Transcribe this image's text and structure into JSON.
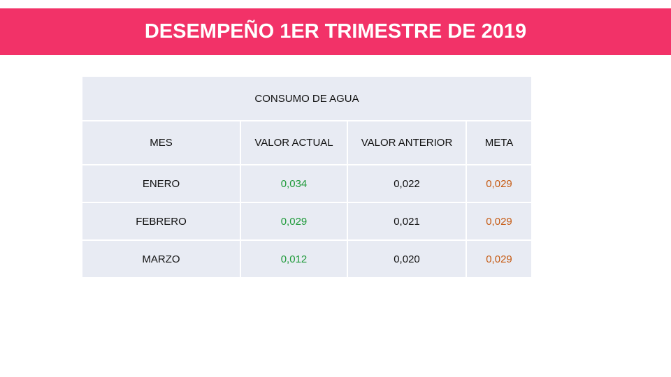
{
  "header": {
    "title": "DESEMPEÑO 1ER TRIMESTRE DE 2019"
  },
  "table": {
    "caption": "CONSUMO DE  AGUA",
    "columns": [
      "MES",
      "VALOR ACTUAL",
      "VALOR ANTERIOR",
      "META"
    ],
    "rows": [
      {
        "mes": "ENERO",
        "actual": "0,034",
        "anterior": "0,022",
        "meta": "0,029"
      },
      {
        "mes": "FEBRERO",
        "actual": "0,029",
        "anterior": "0,021",
        "meta": "0,029"
      },
      {
        "mes": "MARZO",
        "actual": "0,012",
        "anterior": "0,020",
        "meta": "0,029"
      }
    ]
  },
  "colors": {
    "banner": "#f23268",
    "table_bg": "#e8ebf3",
    "actual_value": "#1f9a3a",
    "meta_value": "#c65a12"
  }
}
